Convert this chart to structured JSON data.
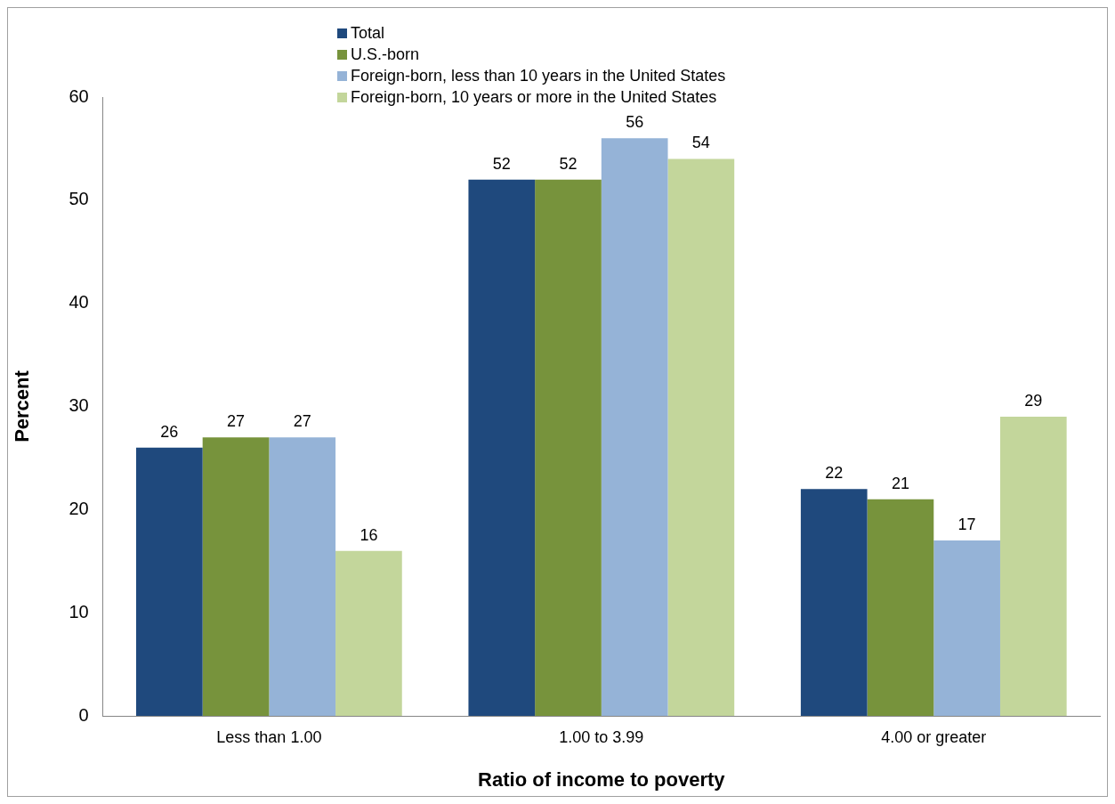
{
  "chart_data": {
    "type": "bar",
    "xlabel": "Ratio of income to poverty",
    "ylabel": "Percent",
    "categories": [
      "Less than 1.00",
      "1.00 to 3.99",
      "4.00 or greater"
    ],
    "series": [
      {
        "name": "Total",
        "color": "#1f497d",
        "values": [
          26,
          52,
          22
        ]
      },
      {
        "name": "U.S.-born",
        "color": "#77933c",
        "values": [
          27,
          52,
          21
        ]
      },
      {
        "name": "Foreign-born, less than 10 years in the United States",
        "color": "#95b3d7",
        "values": [
          27,
          56,
          17
        ]
      },
      {
        "name": "Foreign-born, 10 years or more in the United States",
        "color": "#c3d69b",
        "values": [
          16,
          54,
          29
        ]
      }
    ],
    "ylim": [
      0,
      60
    ],
    "yticks": [
      0,
      10,
      20,
      30,
      40,
      50,
      60
    ],
    "grid": false,
    "legend": "top",
    "data_labels": true
  }
}
